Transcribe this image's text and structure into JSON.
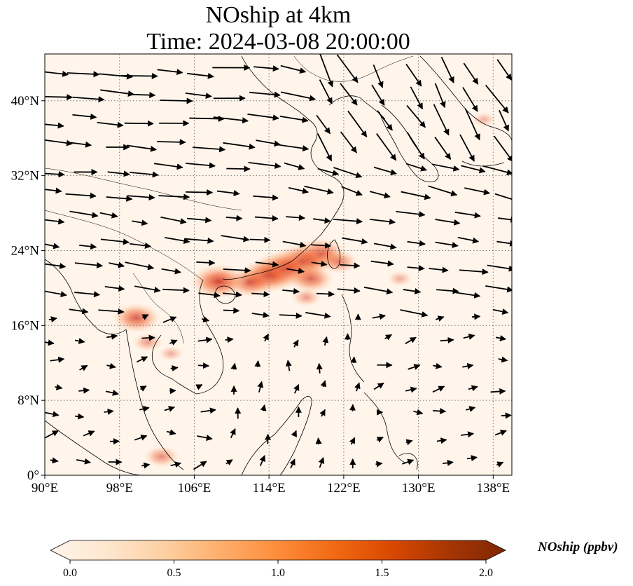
{
  "title_line1": "NOship at 4km",
  "title_line2": "Time: 2024-03-08 20:00:00",
  "map": {
    "lon_range": [
      90,
      140
    ],
    "lat_range": [
      0,
      45
    ],
    "x_ticks": [
      "90°E",
      "98°E",
      "106°E",
      "114°E",
      "122°E",
      "130°E",
      "138°E"
    ],
    "y_ticks": [
      "0°",
      "8°N",
      "16°N",
      "24°N",
      "32°N",
      "40°N"
    ],
    "x_tick_values": [
      90,
      98,
      106,
      114,
      122,
      130,
      138
    ],
    "y_tick_values": [
      0,
      8,
      16,
      24,
      32,
      40
    ],
    "gridlines": true,
    "background_color": "#fff5eb",
    "coastline_color": "#000000"
  },
  "colorbar": {
    "label": "NOship (ppbv)",
    "range": [
      0.0,
      2.0
    ],
    "ticks": [
      "0.0",
      "0.5",
      "1.0",
      "1.5",
      "2.0"
    ],
    "tick_values": [
      0.0,
      0.5,
      1.0,
      1.5,
      2.0
    ],
    "colormap": "OrRd",
    "extend": "both",
    "colors": [
      "#fff5eb",
      "#fee6ce",
      "#fdd0a2",
      "#fdae6b",
      "#fd8d3c",
      "#f16913",
      "#d94801",
      "#a63603",
      "#7f2704"
    ]
  },
  "concentration_hotspots": [
    {
      "lon": 119.5,
      "lat": 23.6,
      "value": 1.4
    },
    {
      "lon": 117.5,
      "lat": 22.8,
      "value": 1.6
    },
    {
      "lon": 115.5,
      "lat": 22.0,
      "value": 1.7
    },
    {
      "lon": 113.8,
      "lat": 21.3,
      "value": 1.5
    },
    {
      "lon": 112.0,
      "lat": 20.6,
      "value": 1.2
    },
    {
      "lon": 108.6,
      "lat": 20.7,
      "value": 1.5
    },
    {
      "lon": 118.5,
      "lat": 21.0,
      "value": 1.1
    },
    {
      "lon": 121.5,
      "lat": 22.8,
      "value": 0.8
    },
    {
      "lon": 118.0,
      "lat": 19.0,
      "value": 0.5
    },
    {
      "lon": 99.8,
      "lat": 16.8,
      "value": 1.2
    },
    {
      "lon": 101.0,
      "lat": 14.2,
      "value": 0.5
    },
    {
      "lon": 103.5,
      "lat": 13.0,
      "value": 0.3
    },
    {
      "lon": 102.5,
      "lat": 2.0,
      "value": 0.7
    },
    {
      "lon": 128.0,
      "lat": 21.0,
      "value": 0.3
    },
    {
      "lon": 137.0,
      "lat": 38.0,
      "value": 0.25
    }
  ]
}
